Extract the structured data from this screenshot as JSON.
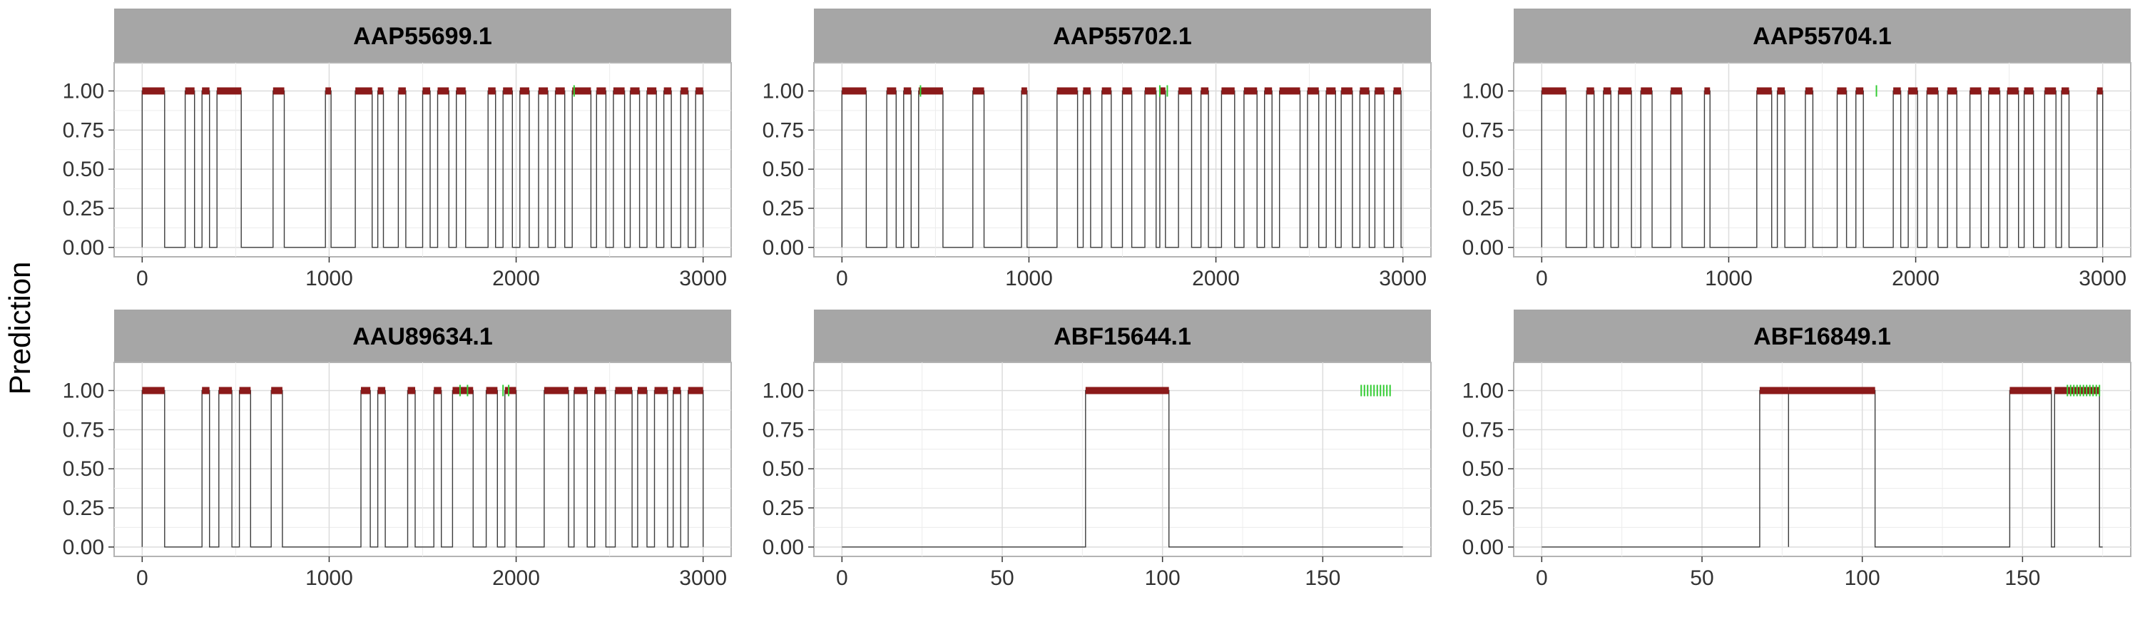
{
  "figure": {
    "ylabel": "Prediction"
  },
  "chart_data": [
    {
      "type": "line",
      "title": "AAP55699.1",
      "xlabel": "",
      "ylabel": "Prediction",
      "xlim": [
        0,
        3000
      ],
      "ylim": [
        0,
        1
      ],
      "x_ticks": [
        "0",
        "1000",
        "2000",
        "3000"
      ],
      "y_ticks": [
        "0.00",
        "0.25",
        "0.50",
        "0.75",
        "1.00"
      ],
      "series": [],
      "binary_regions_y1": [
        [
          0,
          120
        ],
        [
          230,
          280
        ],
        [
          320,
          360
        ],
        [
          400,
          530
        ],
        [
          700,
          760
        ],
        [
          980,
          1010
        ],
        [
          1140,
          1230
        ],
        [
          1260,
          1290
        ],
        [
          1370,
          1410
        ],
        [
          1500,
          1540
        ],
        [
          1580,
          1640
        ],
        [
          1680,
          1730
        ],
        [
          1850,
          1890
        ],
        [
          1930,
          1980
        ],
        [
          2020,
          2070
        ],
        [
          2120,
          2170
        ],
        [
          2210,
          2260
        ],
        [
          2300,
          2400
        ],
        [
          2430,
          2480
        ],
        [
          2520,
          2580
        ],
        [
          2610,
          2660
        ],
        [
          2700,
          2750
        ],
        [
          2790,
          2830
        ],
        [
          2880,
          2920
        ],
        [
          2960,
          3000
        ]
      ],
      "green_marks": [
        2310
      ]
    },
    {
      "type": "line",
      "title": "AAP55702.1",
      "xlabel": "",
      "ylabel": "Prediction",
      "xlim": [
        0,
        3000
      ],
      "ylim": [
        0,
        1
      ],
      "x_ticks": [
        "0",
        "1000",
        "2000",
        "3000"
      ],
      "y_ticks": [
        "0.00",
        "0.25",
        "0.50",
        "0.75",
        "1.00"
      ],
      "series": [],
      "binary_regions_y1": [
        [
          0,
          130
        ],
        [
          240,
          290
        ],
        [
          330,
          370
        ],
        [
          410,
          540
        ],
        [
          700,
          760
        ],
        [
          960,
          990
        ],
        [
          1150,
          1260
        ],
        [
          1290,
          1330
        ],
        [
          1390,
          1440
        ],
        [
          1500,
          1550
        ],
        [
          1620,
          1680
        ],
        [
          1700,
          1730
        ],
        [
          1800,
          1870
        ],
        [
          1920,
          1960
        ],
        [
          2030,
          2100
        ],
        [
          2150,
          2220
        ],
        [
          2260,
          2300
        ],
        [
          2340,
          2450
        ],
        [
          2490,
          2550
        ],
        [
          2590,
          2640
        ],
        [
          2670,
          2730
        ],
        [
          2770,
          2820
        ],
        [
          2850,
          2900
        ],
        [
          2950,
          2990
        ]
      ],
      "green_marks": [
        420,
        1700,
        1740
      ]
    },
    {
      "type": "line",
      "title": "AAP55704.1",
      "xlabel": "",
      "ylabel": "Prediction",
      "xlim": [
        0,
        3000
      ],
      "ylim": [
        0,
        1
      ],
      "x_ticks": [
        "0",
        "1000",
        "2000",
        "3000"
      ],
      "y_ticks": [
        "0.00",
        "0.25",
        "0.50",
        "0.75",
        "1.00"
      ],
      "series": [],
      "binary_regions_y1": [
        [
          0,
          130
        ],
        [
          240,
          280
        ],
        [
          330,
          370
        ],
        [
          410,
          480
        ],
        [
          530,
          590
        ],
        [
          690,
          750
        ],
        [
          870,
          900
        ],
        [
          1150,
          1230
        ],
        [
          1260,
          1300
        ],
        [
          1410,
          1450
        ],
        [
          1580,
          1630
        ],
        [
          1680,
          1720
        ],
        [
          1880,
          1920
        ],
        [
          1960,
          2010
        ],
        [
          2060,
          2120
        ],
        [
          2170,
          2220
        ],
        [
          2290,
          2350
        ],
        [
          2390,
          2450
        ],
        [
          2490,
          2550
        ],
        [
          2580,
          2630
        ],
        [
          2690,
          2750
        ],
        [
          2780,
          2820
        ],
        [
          2970,
          3000
        ]
      ],
      "green_marks": [
        1790
      ]
    },
    {
      "type": "line",
      "title": "AAU89634.1",
      "xlabel": "",
      "ylabel": "Prediction",
      "xlim": [
        0,
        3000
      ],
      "ylim": [
        0,
        1
      ],
      "x_ticks": [
        "0",
        "1000",
        "2000",
        "3000"
      ],
      "y_ticks": [
        "0.00",
        "0.25",
        "0.50",
        "0.75",
        "1.00"
      ],
      "series": [],
      "binary_regions_y1": [
        [
          0,
          120
        ],
        [
          320,
          360
        ],
        [
          410,
          480
        ],
        [
          520,
          580
        ],
        [
          690,
          750
        ],
        [
          1170,
          1220
        ],
        [
          1260,
          1300
        ],
        [
          1420,
          1460
        ],
        [
          1560,
          1600
        ],
        [
          1660,
          1770
        ],
        [
          1840,
          1900
        ],
        [
          1940,
          2000
        ],
        [
          2150,
          2280
        ],
        [
          2310,
          2380
        ],
        [
          2420,
          2480
        ],
        [
          2530,
          2620
        ],
        [
          2650,
          2700
        ],
        [
          2740,
          2810
        ],
        [
          2840,
          2880
        ],
        [
          2920,
          3000
        ]
      ],
      "green_marks": [
        1700,
        1740,
        1930,
        1960
      ]
    },
    {
      "type": "line",
      "title": "ABF15644.1",
      "xlabel": "",
      "ylabel": "Prediction",
      "xlim": [
        0,
        175
      ],
      "ylim": [
        0,
        1
      ],
      "x_ticks": [
        "0",
        "50",
        "100",
        "150"
      ],
      "y_ticks": [
        "0.00",
        "0.25",
        "0.50",
        "0.75",
        "1.00"
      ],
      "series": [],
      "binary_regions_y1": [
        [
          76,
          102
        ]
      ],
      "green_marks": [
        162,
        163,
        164,
        165,
        166,
        167,
        168,
        169,
        170,
        171
      ]
    },
    {
      "type": "line",
      "title": "ABF16849.1",
      "xlabel": "",
      "ylabel": "Prediction",
      "xlim": [
        0,
        175
      ],
      "ylim": [
        0,
        1
      ],
      "x_ticks": [
        "0",
        "50",
        "100",
        "150"
      ],
      "y_ticks": [
        "0.00",
        "0.25",
        "0.50",
        "0.75",
        "1.00"
      ],
      "series": [],
      "binary_regions_y1": [
        [
          68,
          77
        ],
        [
          77,
          104
        ],
        [
          146,
          159
        ],
        [
          160,
          174
        ]
      ],
      "green_marks": [
        164,
        165,
        166,
        167,
        168,
        169,
        170,
        171,
        172,
        173,
        174
      ]
    }
  ]
}
